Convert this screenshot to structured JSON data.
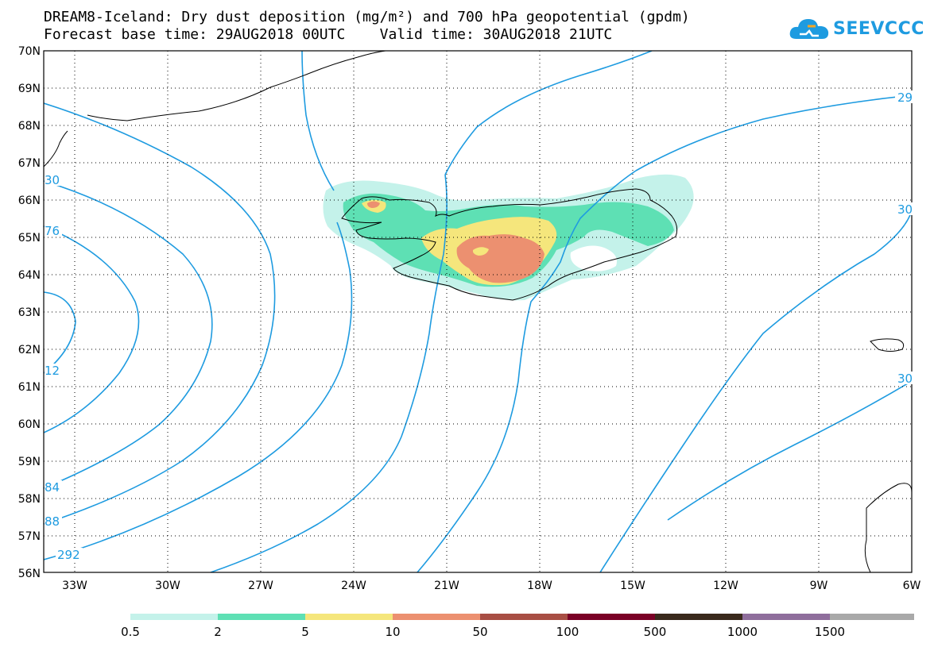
{
  "title": {
    "line1": "DREAM8-Iceland: Dry dust deposition (mg/m²) and 700 hPa geopotential (gpdm)",
    "line2": "Forecast base time: 29AUG2018 00UTC    Valid time: 30AUG2018 21UTC"
  },
  "logo": {
    "text": "SEEVCCC",
    "icon": "cloud-icon"
  },
  "map": {
    "lon_range": [
      -34,
      -6
    ],
    "lat_range": [
      56,
      70
    ],
    "lat_ticks": [
      "70N",
      "69N",
      "68N",
      "67N",
      "66N",
      "65N",
      "64N",
      "63N",
      "62N",
      "61N",
      "60N",
      "59N",
      "58N",
      "57N",
      "56N"
    ],
    "lon_ticks": [
      "33W",
      "30W",
      "27W",
      "24W",
      "21W",
      "18W",
      "15W",
      "12W",
      "9W",
      "6W"
    ],
    "grid": "dotted"
  },
  "contours": {
    "color": "#1e9be0",
    "labels": [
      "29",
      "30",
      "30",
      "30",
      "76",
      "12",
      "84",
      "88",
      "292"
    ]
  },
  "legend": {
    "colors": [
      "#c4f2ea",
      "#5ee0b4",
      "#f5e67c",
      "#ec9070",
      "#a84e44",
      "#7a0026",
      "#3a2a1c",
      "#8f6e9c",
      "#a9a9a9"
    ],
    "labels": [
      "0.5",
      "2",
      "5",
      "10",
      "50",
      "100",
      "500",
      "1000",
      "1500"
    ]
  }
}
